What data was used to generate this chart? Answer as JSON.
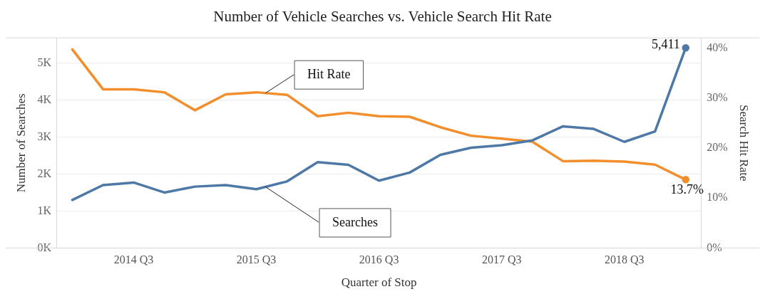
{
  "chart_data": {
    "type": "line",
    "title": "Number of Vehicle Searches vs. Vehicle Search Hit Rate",
    "xlabel": "Quarter of Stop",
    "ylabel": "Number of Searches",
    "y2label": "Search Hit Rate",
    "categories": [
      null,
      null,
      "2014 Q3",
      null,
      null,
      null,
      "2015 Q3",
      null,
      null,
      null,
      "2016 Q3",
      null,
      null,
      null,
      "2017 Q3",
      null,
      null,
      null,
      "2018 Q3",
      null,
      null
    ],
    "series": [
      {
        "name": "Searches",
        "color": "#4e79a7",
        "values": [
          1300,
          1700,
          1770,
          1500,
          1660,
          1700,
          1590,
          1800,
          2320,
          2250,
          1820,
          2040,
          2520,
          2710,
          2780,
          2910,
          3290,
          3220,
          2870,
          3150,
          5411
        ],
        "value_labels": [
          null,
          null,
          null,
          null,
          null,
          null,
          null,
          null,
          null,
          null,
          null,
          null,
          null,
          null,
          null,
          null,
          null,
          null,
          null,
          null,
          "5,411"
        ]
      },
      {
        "name": "Hit Rate",
        "color": "#f28e2b",
        "axis": "y2",
        "values": [
          39.8,
          31.8,
          31.8,
          31.2,
          27.6,
          30.8,
          31.2,
          30.7,
          26.4,
          27.1,
          26.4,
          26.3,
          24.2,
          22.5,
          21.9,
          21.3,
          17.4,
          17.5,
          17.3,
          16.7,
          13.7
        ],
        "value_labels": [
          null,
          null,
          null,
          null,
          null,
          null,
          null,
          null,
          null,
          null,
          null,
          null,
          null,
          null,
          null,
          null,
          null,
          null,
          null,
          null,
          "13.7%"
        ]
      }
    ],
    "ylim": [
      0,
      5680
    ],
    "yticks": [
      {
        "value": 0,
        "label": "0K"
      },
      {
        "value": 1000,
        "label": "1K"
      },
      {
        "value": 2000,
        "label": "2K"
      },
      {
        "value": 3000,
        "label": "3K"
      },
      {
        "value": 4000,
        "label": "4K"
      },
      {
        "value": 5000,
        "label": "5K"
      }
    ],
    "y2lim": [
      0,
      42.1
    ],
    "y2ticks": [
      {
        "value": 0,
        "label": "0%"
      },
      {
        "value": 10,
        "label": "10%"
      },
      {
        "value": 20,
        "label": "20%"
      },
      {
        "value": 30,
        "label": "30%"
      },
      {
        "value": 40,
        "label": "40%"
      }
    ],
    "grid": "y",
    "legend": false,
    "line_style": "solid"
  }
}
